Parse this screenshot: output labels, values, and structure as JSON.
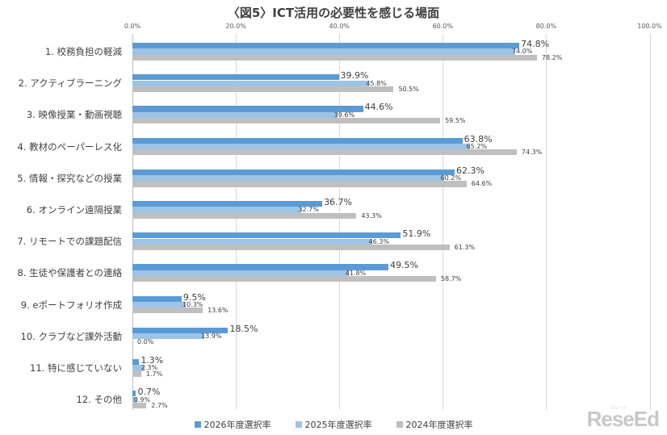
{
  "chart_data": {
    "type": "bar",
    "orientation": "horizontal",
    "title": "〈図5〉ICT活用の必要性を感じる場面",
    "xlabel": "",
    "ylabel": "",
    "xlim": [
      0,
      100
    ],
    "x_ticks": [
      "0.0%",
      "20.0%",
      "40.0%",
      "60.0%",
      "80.0%",
      "100.0%"
    ],
    "grid": true,
    "legend_position": "bottom",
    "categories": [
      "1. 校務負担の軽減",
      "2. アクティブラーニング",
      "3. 映像授業・動画視聴",
      "4. 教材のペーパーレス化",
      "5. 情報・探究などの授業",
      "6. オンライン遠隔授業",
      "7. リモートでの課題配信",
      "8. 生徒や保護者との連絡",
      "9. eポートフォリオ作成",
      "10. クラブなど課外活動",
      "11. 特に感じていない",
      "12. その他"
    ],
    "series": [
      {
        "name": "2026年度選択率",
        "color": "#5B9BD5",
        "values": [
          74.8,
          39.9,
          44.6,
          63.8,
          62.3,
          36.7,
          51.9,
          49.5,
          9.5,
          18.5,
          1.3,
          0.7
        ]
      },
      {
        "name": "2025年度選択率",
        "color": "#9DC3E6",
        "values": [
          74.0,
          45.8,
          39.6,
          65.2,
          60.2,
          32.7,
          46.3,
          41.8,
          10.3,
          13.9,
          2.3,
          0.9
        ]
      },
      {
        "name": "2024年度選択率",
        "color": "#BFBFBF",
        "values": [
          78.2,
          50.5,
          59.5,
          74.3,
          64.6,
          43.3,
          61.3,
          58.7,
          13.6,
          0.0,
          1.7,
          2.7
        ]
      }
    ]
  },
  "watermark": {
    "text": "ReseEd",
    "ruby": "リシード"
  }
}
